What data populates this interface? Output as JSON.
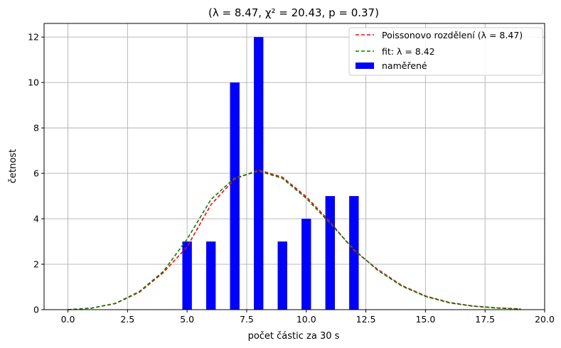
{
  "chart_data": {
    "type": "bar",
    "title": "(λ = 8.47, χ² = 20.43, p = 0.37)",
    "xlabel": "počet částic za 30 s",
    "ylabel": "četnost",
    "xlim": [
      -1,
      20
    ],
    "ylim": [
      0,
      12.6
    ],
    "xticks": [
      0,
      2.5,
      5,
      7.5,
      10,
      12.5,
      15,
      17.5,
      20
    ],
    "xtick_labels": [
      "0.0",
      "2.5",
      "5.0",
      "7.5",
      "10.0",
      "12.5",
      "15.0",
      "17.5",
      "20.0"
    ],
    "yticks": [
      0,
      2,
      4,
      6,
      8,
      10,
      12
    ],
    "ytick_labels": [
      "0",
      "2",
      "4",
      "6",
      "8",
      "10",
      "12"
    ],
    "grid": true,
    "legend_position": "top-right",
    "bars": {
      "name": "naměřené",
      "color": "#0000ff",
      "x": [
        5,
        6,
        7,
        8,
        9,
        10,
        11,
        12
      ],
      "values": [
        3,
        3,
        10,
        12,
        3,
        4,
        5,
        5
      ]
    },
    "lines": [
      {
        "name": "Poissonovo rozdělení (λ = 8.47)",
        "color": "#ff0000",
        "style": "dashed",
        "x": [
          0,
          1,
          2,
          3,
          4,
          5,
          6,
          7,
          8,
          9,
          10,
          11,
          12,
          13,
          14,
          15,
          16,
          17,
          18,
          19
        ],
        "y": [
          0.0,
          0.07,
          0.27,
          0.77,
          1.63,
          2.76,
          4.62,
          5.75,
          6.15,
          5.83,
          4.97,
          3.86,
          2.6,
          1.77,
          1.07,
          0.6,
          0.32,
          0.16,
          0.08,
          0.03
        ]
      },
      {
        "name": "fit: λ = 8.42",
        "color": "#008000",
        "style": "dashed",
        "x": [
          0,
          1,
          2,
          3,
          4,
          5,
          6,
          7,
          8,
          9,
          10,
          11,
          12,
          13,
          14,
          15,
          16,
          17,
          18,
          19
        ],
        "y": [
          0.0,
          0.07,
          0.28,
          0.8,
          1.68,
          3.1,
          4.85,
          5.8,
          6.1,
          5.78,
          4.9,
          3.8,
          2.65,
          1.73,
          1.04,
          0.58,
          0.3,
          0.15,
          0.07,
          0.03
        ]
      }
    ]
  }
}
